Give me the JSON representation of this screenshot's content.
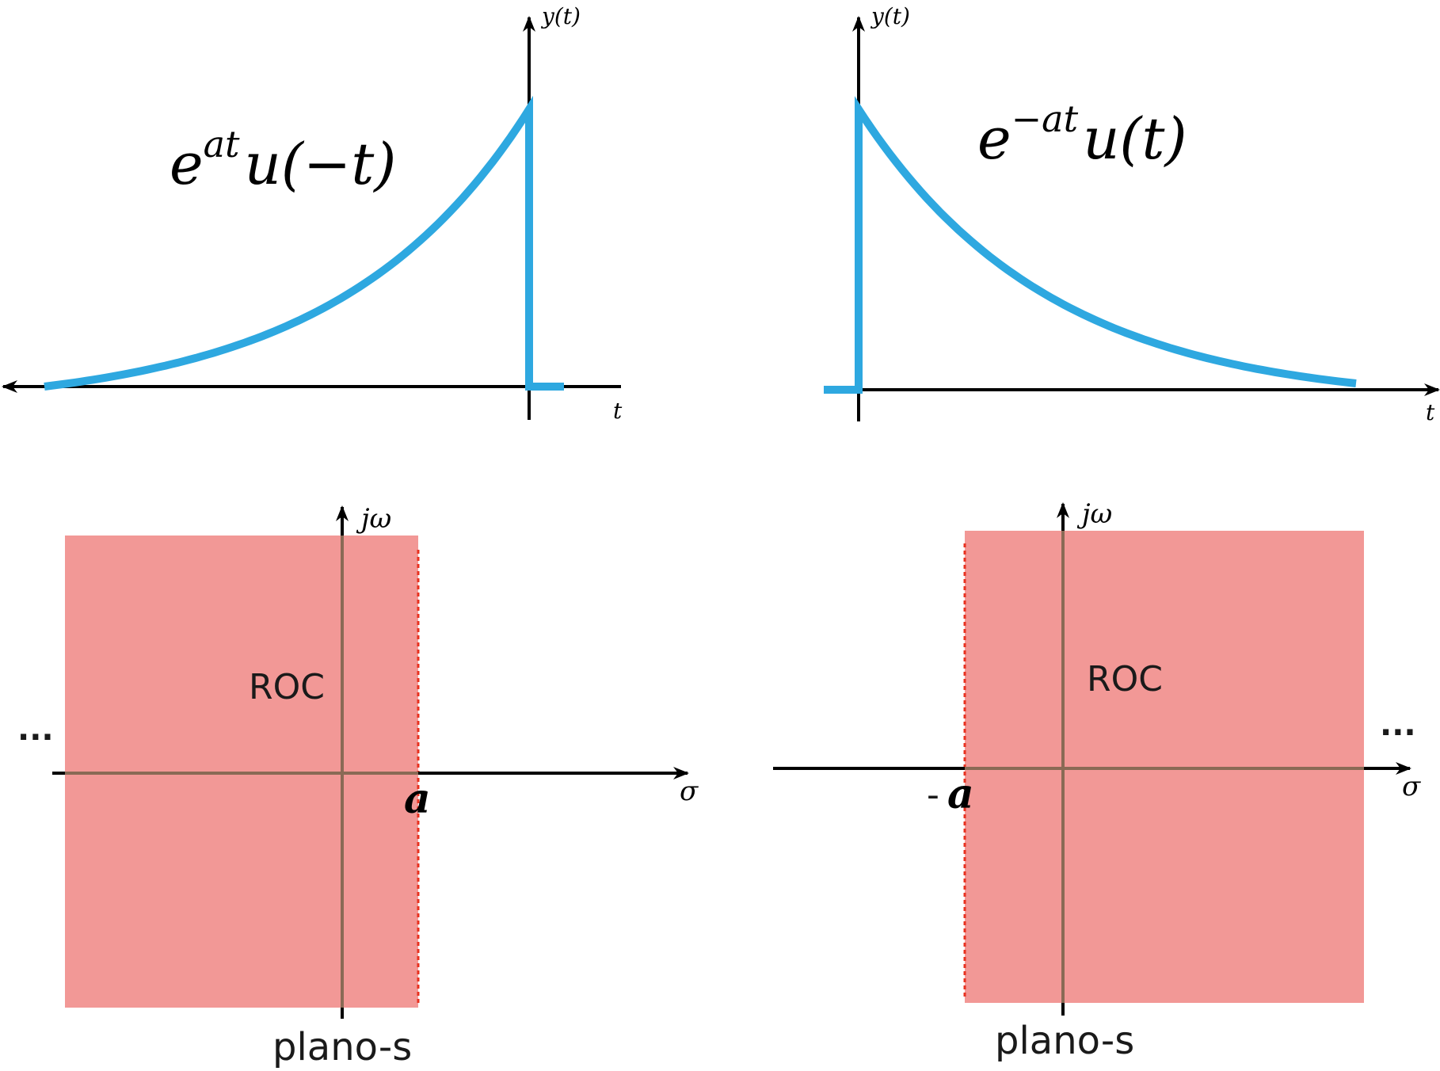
{
  "colors": {
    "signal": "#2ea8e0",
    "roc_fill": "#f29896",
    "roc_boundary": "#e8311f",
    "splane_axis": "#8a6a55",
    "axis": "#000000"
  },
  "panels": {
    "top_left": {
      "y_label": "y(t)",
      "t_label": "t",
      "formula": {
        "base": "e",
        "exponent": "at",
        "rest": "u(−t)"
      },
      "curve": "exponential rising to t = 0, zero for t > 0",
      "arrow_direction": "left"
    },
    "top_right": {
      "y_label": "y(t)",
      "t_label": "t",
      "formula": {
        "base": "e",
        "exponent": "−at",
        "rest": "u(t)"
      },
      "curve": "exponential decaying from t = 0, zero for t < 0",
      "arrow_direction": "right"
    },
    "bottom_left": {
      "jw_label": "jω",
      "sigma_label": "σ",
      "roc_label": "ROC",
      "ellipsis": "...",
      "boundary_label": "a",
      "plane_label": "plano-s",
      "roc_side": "left of σ = a"
    },
    "bottom_right": {
      "jw_label": "jω",
      "sigma_label": "σ",
      "roc_label": "ROC",
      "ellipsis": "...",
      "boundary_prefix": "-",
      "boundary_label": "a",
      "plane_label": "plano-s",
      "roc_side": "right of σ = −a"
    }
  }
}
